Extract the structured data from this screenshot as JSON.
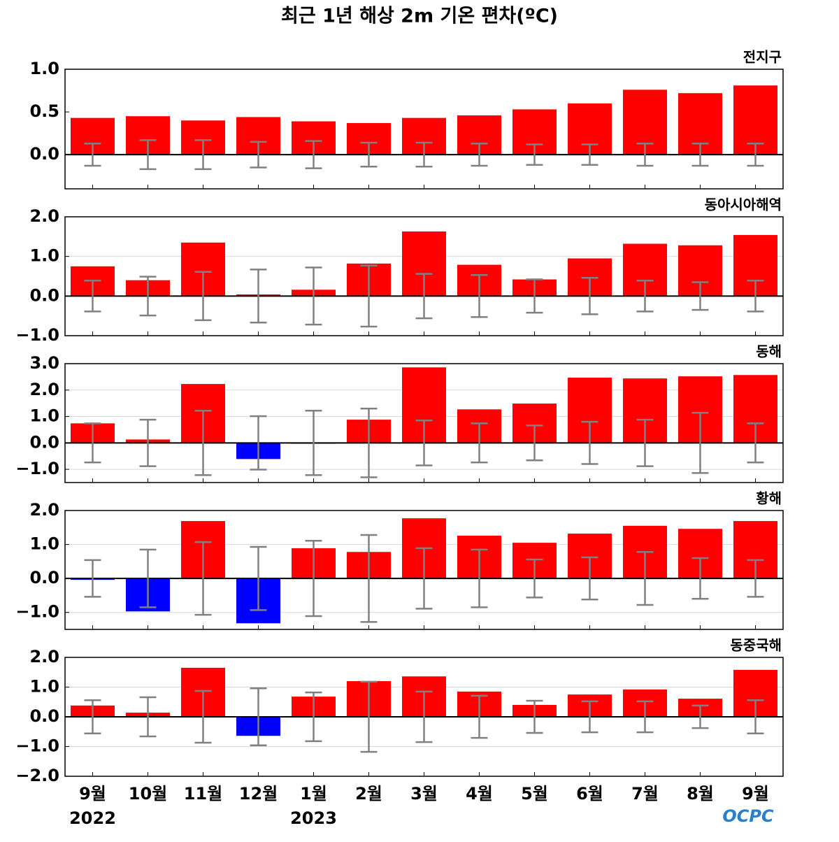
{
  "title": "최근 1년 해상 2m 기온 편차(ºC)",
  "logo": "OCPC",
  "chart_data": [
    {
      "type": "bar",
      "subtitle": "전지구",
      "values": [
        0.43,
        0.45,
        0.4,
        0.44,
        0.39,
        0.37,
        0.43,
        0.46,
        0.53,
        0.6,
        0.76,
        0.72,
        0.81
      ],
      "error_range": [
        0.13,
        0.17,
        0.17,
        0.15,
        0.16,
        0.14,
        0.14,
        0.13,
        0.12,
        0.12,
        0.13,
        0.13,
        0.13
      ],
      "ylim": [
        -0.4,
        1.0
      ],
      "yticks": [
        {
          "value": 0,
          "label": "0.0"
        },
        {
          "value": 0.5,
          "label": "0.5"
        },
        {
          "value": 1.0,
          "label": "1.0"
        }
      ],
      "positive_color": "#ff0000",
      "negative_color": "#0000ff",
      "error_color": "#808080",
      "grid": false
    },
    {
      "type": "bar",
      "subtitle": "동아시아해역",
      "values": [
        0.75,
        0.4,
        1.35,
        0.04,
        0.16,
        0.82,
        1.63,
        0.79,
        0.42,
        0.95,
        1.32,
        1.28,
        1.54
      ],
      "error_range": [
        0.39,
        0.49,
        0.61,
        0.67,
        0.72,
        0.77,
        0.56,
        0.53,
        0.42,
        0.46,
        0.39,
        0.35,
        0.39
      ],
      "ylim": [
        -1.0,
        2.0
      ],
      "yticks": [
        {
          "value": -1,
          "label": "−1.0"
        },
        {
          "value": 0,
          "label": "0.0"
        },
        {
          "value": 1,
          "label": "1.0"
        },
        {
          "value": 2,
          "label": "2.0"
        }
      ],
      "positive_color": "#ff0000",
      "negative_color": "#0000ff",
      "error_color": "#808080",
      "grid": true
    },
    {
      "type": "bar",
      "subtitle": "동해",
      "values": [
        0.74,
        0.13,
        2.23,
        -0.61,
        -0.03,
        0.88,
        2.86,
        1.27,
        1.49,
        2.47,
        2.44,
        2.52,
        2.57
      ],
      "error_range": [
        0.74,
        0.88,
        1.22,
        1.01,
        1.22,
        1.3,
        0.85,
        0.74,
        0.66,
        0.8,
        0.88,
        1.14,
        0.74
      ],
      "ylim": [
        -1.5,
        3.0
      ],
      "yticks": [
        {
          "value": -1,
          "label": "−1.0"
        },
        {
          "value": 0,
          "label": "0.0"
        },
        {
          "value": 1,
          "label": "1.0"
        },
        {
          "value": 2,
          "label": "2.0"
        },
        {
          "value": 3,
          "label": "3.0"
        }
      ],
      "positive_color": "#ff0000",
      "negative_color": "#0000ff",
      "error_color": "#808080",
      "grid": true
    },
    {
      "type": "bar",
      "subtitle": "황해",
      "values": [
        -0.04,
        -0.97,
        1.69,
        -1.32,
        0.89,
        0.78,
        1.77,
        1.26,
        1.05,
        1.32,
        1.55,
        1.46,
        1.69
      ],
      "error_range": [
        0.54,
        0.85,
        1.07,
        0.93,
        1.11,
        1.28,
        0.89,
        0.85,
        0.56,
        0.62,
        0.78,
        0.6,
        0.54
      ],
      "ylim": [
        -1.5,
        2.0
      ],
      "yticks": [
        {
          "value": -1,
          "label": "−1.0"
        },
        {
          "value": 0,
          "label": "0.0"
        },
        {
          "value": 1,
          "label": "1.0"
        },
        {
          "value": 2,
          "label": "2.0"
        }
      ],
      "positive_color": "#ff0000",
      "negative_color": "#0000ff",
      "error_color": "#808080",
      "grid": true
    },
    {
      "type": "bar",
      "subtitle": "동중국해",
      "categories": [
        "9월",
        "10월",
        "11월",
        "12월",
        "1월",
        "2월",
        "3월",
        "4월",
        "5월",
        "6월",
        "7월",
        "8월",
        "9월"
      ],
      "category_years": [
        "2022",
        null,
        null,
        null,
        "2023",
        null,
        null,
        null,
        null,
        null,
        null,
        null,
        null
      ],
      "values": [
        0.38,
        0.14,
        1.65,
        -0.64,
        0.68,
        1.2,
        1.36,
        0.85,
        0.4,
        0.75,
        0.92,
        0.61,
        1.58
      ],
      "error_range": [
        0.56,
        0.66,
        0.87,
        0.96,
        0.82,
        1.18,
        0.85,
        0.71,
        0.54,
        0.52,
        0.52,
        0.38,
        0.56
      ],
      "ylim": [
        -2.0,
        2.0
      ],
      "yticks": [
        {
          "value": -2,
          "label": "−2.0"
        },
        {
          "value": -1,
          "label": "−1.0"
        },
        {
          "value": 0,
          "label": "0.0"
        },
        {
          "value": 1,
          "label": "1.0"
        },
        {
          "value": 2,
          "label": "2.0"
        }
      ],
      "positive_color": "#ff0000",
      "negative_color": "#0000ff",
      "error_color": "#808080",
      "grid": true
    }
  ]
}
